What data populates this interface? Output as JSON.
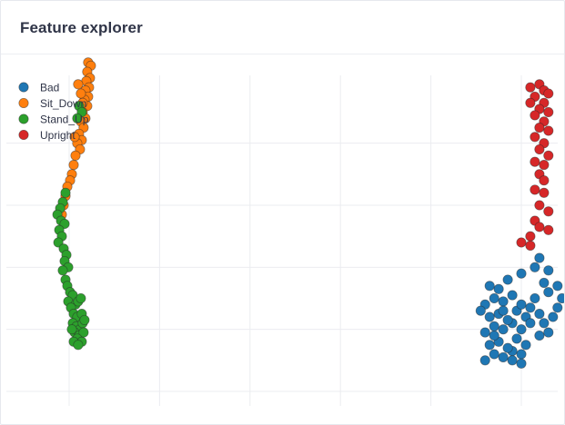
{
  "header": {
    "title": "Feature explorer"
  },
  "chart_data": {
    "type": "scatter",
    "title": "",
    "xlabel": "",
    "ylabel": "",
    "xlim": [
      -1,
      10.5
    ],
    "ylim": [
      -2,
      10.6
    ],
    "grid": true,
    "legend_position": "top-left",
    "series": [
      {
        "name": "Bad",
        "color": "#1f77b4",
        "points": [
          [
            9.2,
            1.0
          ],
          [
            9.4,
            1.2
          ],
          [
            9.6,
            1.1
          ],
          [
            9.8,
            1.3
          ],
          [
            10.0,
            1.2
          ],
          [
            9.3,
            1.5
          ],
          [
            9.5,
            1.6
          ],
          [
            9.7,
            1.4
          ],
          [
            9.9,
            1.7
          ],
          [
            10.1,
            1.5
          ],
          [
            9.2,
            1.9
          ],
          [
            9.4,
            2.1
          ],
          [
            9.6,
            2.0
          ],
          [
            9.8,
            2.2
          ],
          [
            10.0,
            2.0
          ],
          [
            9.3,
            2.4
          ],
          [
            9.5,
            2.5
          ],
          [
            9.7,
            2.3
          ],
          [
            9.9,
            2.6
          ],
          [
            10.1,
            2.4
          ],
          [
            9.2,
            2.8
          ],
          [
            9.4,
            3.0
          ],
          [
            9.6,
            2.9
          ],
          [
            9.8,
            3.1
          ],
          [
            10.0,
            2.8
          ],
          [
            10.2,
            2.7
          ],
          [
            10.3,
            3.0
          ],
          [
            10.4,
            2.5
          ],
          [
            10.5,
            2.2
          ],
          [
            10.2,
            2.2
          ],
          [
            10.4,
            1.8
          ],
          [
            10.6,
            1.9
          ],
          [
            10.7,
            2.4
          ],
          [
            10.8,
            2.7
          ],
          [
            10.6,
            3.2
          ],
          [
            10.5,
            3.5
          ],
          [
            9.5,
            3.3
          ],
          [
            9.7,
            3.6
          ],
          [
            10.0,
            3.8
          ],
          [
            10.3,
            4.0
          ],
          [
            10.4,
            4.3
          ],
          [
            10.6,
            3.9
          ],
          [
            10.8,
            3.4
          ],
          [
            10.9,
            3.0
          ],
          [
            9.3,
            3.4
          ],
          [
            9.4,
            1.8
          ],
          [
            9.1,
            2.6
          ],
          [
            9.8,
            1.0
          ],
          [
            10.0,
            0.9
          ],
          [
            9.6,
            2.6
          ]
        ]
      },
      {
        "name": "Sit_Down",
        "color": "#ff7f0e",
        "points": [
          [
            0.42,
            10.6
          ],
          [
            0.48,
            10.5
          ],
          [
            0.4,
            10.3
          ],
          [
            0.46,
            10.1
          ],
          [
            0.38,
            10.0
          ],
          [
            0.44,
            9.8
          ],
          [
            0.36,
            9.7
          ],
          [
            0.42,
            9.5
          ],
          [
            0.34,
            9.4
          ],
          [
            0.4,
            9.2
          ],
          [
            0.3,
            9.0
          ],
          [
            0.36,
            8.8
          ],
          [
            0.26,
            8.7
          ],
          [
            0.32,
            8.5
          ],
          [
            0.22,
            8.3
          ],
          [
            0.28,
            8.1
          ],
          [
            0.18,
            8.0
          ],
          [
            0.24,
            7.8
          ],
          [
            0.14,
            7.6
          ],
          [
            0.1,
            7.3
          ],
          [
            0.06,
            7.0
          ],
          [
            0.02,
            6.8
          ],
          [
            -0.04,
            6.6
          ],
          [
            -0.08,
            6.3
          ],
          [
            -0.12,
            6.0
          ],
          [
            -0.16,
            5.7
          ],
          [
            0.2,
            9.9
          ],
          [
            0.26,
            9.6
          ],
          [
            0.3,
            9.3
          ],
          [
            0.12,
            8.2
          ]
        ]
      },
      {
        "name": "Stand_Up",
        "color": "#2ca02c",
        "points": [
          [
            0.22,
            9.2
          ],
          [
            0.28,
            9.0
          ],
          [
            0.18,
            8.8
          ],
          [
            -0.08,
            6.4
          ],
          [
            -0.14,
            6.1
          ],
          [
            -0.2,
            5.9
          ],
          [
            -0.26,
            5.7
          ],
          [
            -0.18,
            5.5
          ],
          [
            -0.1,
            5.4
          ],
          [
            -0.22,
            5.2
          ],
          [
            -0.16,
            5.0
          ],
          [
            -0.24,
            4.8
          ],
          [
            -0.12,
            4.6
          ],
          [
            -0.06,
            4.4
          ],
          [
            -0.1,
            4.2
          ],
          [
            -0.02,
            4.0
          ],
          [
            -0.08,
            3.6
          ],
          [
            -0.04,
            3.4
          ],
          [
            0.02,
            3.2
          ],
          [
            0.08,
            3.1
          ],
          [
            -0.02,
            2.9
          ],
          [
            0.14,
            2.8
          ],
          [
            0.2,
            2.9
          ],
          [
            0.26,
            3.0
          ],
          [
            0.04,
            2.7
          ],
          [
            0.1,
            2.5
          ],
          [
            0.18,
            2.4
          ],
          [
            0.28,
            2.5
          ],
          [
            0.08,
            2.2
          ],
          [
            0.16,
            2.1
          ],
          [
            0.24,
            2.0
          ],
          [
            0.3,
            2.2
          ],
          [
            0.12,
            1.9
          ],
          [
            0.22,
            1.8
          ],
          [
            0.32,
            1.9
          ],
          [
            0.18,
            1.7
          ],
          [
            0.28,
            1.6
          ],
          [
            0.1,
            1.6
          ],
          [
            0.34,
            2.3
          ],
          [
            -0.14,
            3.9
          ],
          [
            0.06,
            2.0
          ],
          [
            0.2,
            1.5
          ]
        ]
      },
      {
        "name": "Upright",
        "color": "#d62728",
        "points": [
          [
            10.2,
            9.8
          ],
          [
            10.4,
            9.9
          ],
          [
            10.5,
            9.7
          ],
          [
            10.3,
            9.5
          ],
          [
            10.5,
            9.3
          ],
          [
            10.6,
            9.6
          ],
          [
            10.2,
            9.3
          ],
          [
            10.4,
            9.1
          ],
          [
            10.6,
            9.0
          ],
          [
            10.3,
            8.9
          ],
          [
            10.5,
            8.7
          ],
          [
            10.4,
            8.5
          ],
          [
            10.6,
            8.4
          ],
          [
            10.3,
            8.2
          ],
          [
            10.5,
            8.0
          ],
          [
            10.4,
            7.8
          ],
          [
            10.6,
            7.6
          ],
          [
            10.3,
            7.4
          ],
          [
            10.5,
            7.3
          ],
          [
            10.4,
            7.0
          ],
          [
            10.5,
            6.8
          ],
          [
            10.3,
            6.5
          ],
          [
            10.5,
            6.4
          ],
          [
            10.4,
            6.0
          ],
          [
            10.6,
            5.8
          ],
          [
            10.3,
            5.5
          ],
          [
            10.4,
            5.3
          ],
          [
            10.6,
            5.2
          ],
          [
            10.2,
            5.0
          ],
          [
            10.0,
            4.8
          ],
          [
            10.2,
            4.7
          ]
        ]
      }
    ]
  }
}
